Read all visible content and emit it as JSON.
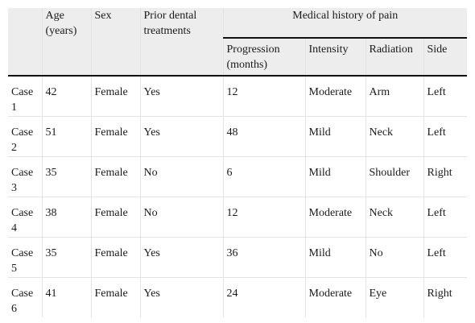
{
  "table": {
    "headers": {
      "case": "",
      "age": "Age (years)",
      "sex": "Sex",
      "prior": "Prior dental treatments",
      "group": "Medical history of pain",
      "progression": "Progression (months)",
      "intensity": "Intensity",
      "radiation": "Radiation",
      "side": "Side"
    },
    "rows": [
      {
        "case": "Case 1",
        "age": "42",
        "sex": "Female",
        "prior": "Yes",
        "progression": "12",
        "intensity": "Moderate",
        "radiation": "Arm",
        "side": "Left"
      },
      {
        "case": "Case 2",
        "age": "51",
        "sex": "Female",
        "prior": "Yes",
        "progression": "48",
        "intensity": "Mild",
        "radiation": "Neck",
        "side": "Left"
      },
      {
        "case": "Case 3",
        "age": "35",
        "sex": "Female",
        "prior": "No",
        "progression": "6",
        "intensity": "Mild",
        "radiation": "Shoulder",
        "side": "Right"
      },
      {
        "case": "Case 4",
        "age": "38",
        "sex": "Female",
        "prior": "No",
        "progression": "12",
        "intensity": "Moderate",
        "radiation": "Neck",
        "side": "Left"
      },
      {
        "case": "Case 5",
        "age": "35",
        "sex": "Female",
        "prior": "Yes",
        "progression": "36",
        "intensity": "Mild",
        "radiation": "No",
        "side": "Left"
      },
      {
        "case": "Case 6",
        "age": "41",
        "sex": "Female",
        "prior": "Yes",
        "progression": "24",
        "intensity": "Moderate",
        "radiation": "Eye",
        "side": "Right"
      }
    ]
  }
}
